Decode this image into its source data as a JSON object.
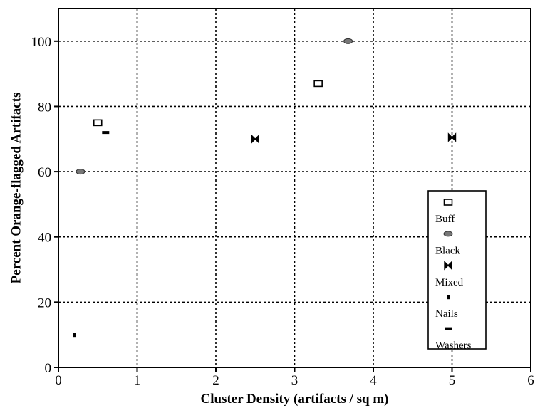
{
  "chart_data": {
    "type": "scatter",
    "title": "",
    "xlabel": "Cluster Density (artifacts / sq m)",
    "ylabel": "Percent Orange-flagged Artifacts",
    "xlim": [
      0,
      6
    ],
    "ylim": [
      0,
      110
    ],
    "x_ticks": [
      "0",
      "1",
      "2",
      "3",
      "4",
      "5",
      "6"
    ],
    "y_ticks": [
      "0",
      "20",
      "40",
      "60",
      "80",
      "100"
    ],
    "grid": true,
    "legend_position": "right",
    "series": [
      {
        "name": "Buff",
        "marker": "open-square",
        "points": [
          {
            "x": 0.5,
            "y": 75
          },
          {
            "x": 3.3,
            "y": 87
          }
        ]
      },
      {
        "name": "Black",
        "marker": "gray-ellipse",
        "points": [
          {
            "x": 0.28,
            "y": 60
          },
          {
            "x": 3.68,
            "y": 100
          }
        ]
      },
      {
        "name": "Mixed",
        "marker": "bowtie",
        "points": [
          {
            "x": 2.5,
            "y": 70
          },
          {
            "x": 5.0,
            "y": 70.5
          }
        ]
      },
      {
        "name": "Nails",
        "marker": "small-bar",
        "points": [
          {
            "x": 0.2,
            "y": 10
          }
        ]
      },
      {
        "name": "Washers",
        "marker": "dash",
        "points": [
          {
            "x": 0.6,
            "y": 72
          }
        ]
      }
    ]
  }
}
